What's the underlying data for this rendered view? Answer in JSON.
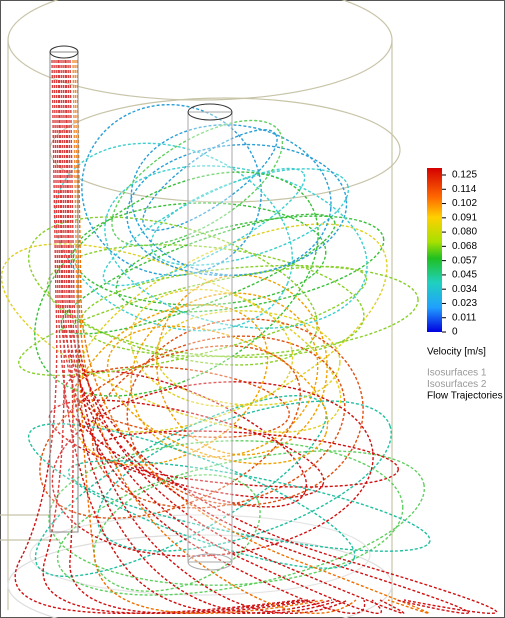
{
  "legend": {
    "ticks": [
      "0.125",
      "0.114",
      "0.102",
      "0.091",
      "0.080",
      "0.068",
      "0.057",
      "0.045",
      "0.034",
      "0.023",
      "0.011",
      "0"
    ],
    "title": "Velocity [m/s]",
    "items": [
      "Isosurfaces 1",
      "Isosurfaces 2",
      "Flow Trajectories 1"
    ]
  }
}
